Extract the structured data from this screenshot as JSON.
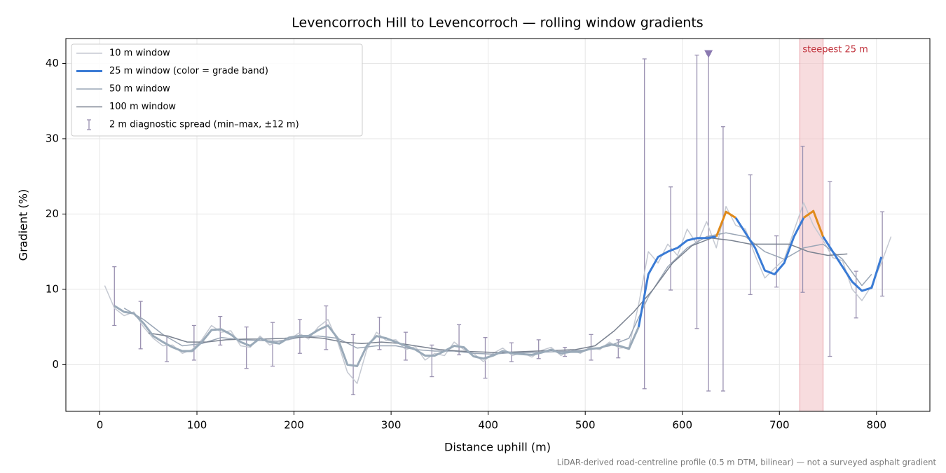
{
  "chart_data": {
    "type": "line",
    "title": "Levencorroch Hill to Levencorroch — rolling window gradients",
    "xlabel": "Distance uphill (m)",
    "ylabel": "Gradient (%)",
    "footnote": "LiDAR-derived road-centreline profile (0.5 m DTM, bilinear) — not a surveyed asphalt gradient",
    "xlim": [
      -35,
      855
    ],
    "ylim": [
      -6.2,
      43.3
    ],
    "xticks": [
      0,
      100,
      200,
      300,
      400,
      500,
      600,
      700,
      800
    ],
    "yticks": [
      0,
      10,
      20,
      30,
      40
    ],
    "grid": true,
    "legend": "upper left",
    "series": [
      {
        "name": "10 m window",
        "color": "#c5c9d2",
        "x": [
          5,
          15,
          25,
          35,
          45,
          55,
          65,
          75,
          85,
          95,
          105,
          115,
          125,
          135,
          145,
          155,
          165,
          175,
          185,
          195,
          205,
          215,
          225,
          235,
          245,
          255,
          265,
          275,
          285,
          295,
          305,
          315,
          325,
          335,
          345,
          355,
          365,
          375,
          385,
          395,
          405,
          415,
          425,
          435,
          445,
          455,
          465,
          475,
          485,
          495,
          505,
          515,
          525,
          535,
          545,
          555,
          565,
          575,
          585,
          595,
          605,
          615,
          625,
          635,
          645,
          655,
          665,
          675,
          685,
          695,
          705,
          715,
          725,
          735,
          745,
          755,
          765,
          775,
          785,
          795,
          805,
          815
        ],
        "values": [
          10.5,
          7.5,
          6.5,
          7.0,
          5.0,
          3.5,
          2.5,
          2.6,
          1.5,
          2.0,
          3.3,
          5.2,
          4.3,
          4.5,
          2.5,
          2.3,
          3.8,
          2.6,
          3.2,
          3.3,
          4.2,
          3.4,
          5.0,
          6.0,
          3.0,
          -1.0,
          -2.5,
          2.0,
          4.3,
          3.2,
          3.3,
          2.0,
          2.4,
          0.6,
          1.5,
          1.2,
          3.0,
          2.0,
          1.5,
          0.4,
          1.5,
          2.2,
          1.2,
          1.6,
          1.0,
          1.9,
          2.3,
          1.2,
          2.0,
          1.5,
          2.3,
          2.0,
          3.0,
          2.2,
          2.3,
          8,
          15,
          13.5,
          16,
          14.5,
          18,
          16,
          19,
          15.5,
          21,
          18.5,
          18,
          14.5,
          11.5,
          12.8,
          14,
          17.8,
          21.5,
          18.5,
          16.5,
          14.2,
          13.8,
          10,
          8.5,
          10.5,
          13.5,
          17
        ]
      },
      {
        "name": "25 m window (color = grade band)",
        "color": "#3a7bd5",
        "x": [
          15,
          25,
          35,
          45,
          55,
          65,
          75,
          85,
          95,
          105,
          115,
          125,
          135,
          145,
          155,
          165,
          175,
          185,
          195,
          205,
          215,
          225,
          235,
          245,
          255,
          265,
          275,
          285,
          295,
          305,
          315,
          325,
          335,
          345,
          355,
          365,
          375,
          385,
          395,
          405,
          415,
          425,
          435,
          445,
          455,
          465,
          475,
          485,
          495,
          505,
          515,
          525,
          535,
          545,
          555,
          565,
          575,
          585,
          595,
          605,
          615,
          625,
          635,
          645,
          655,
          665,
          675,
          685,
          695,
          705,
          715,
          725,
          735,
          745,
          755,
          765,
          775,
          785,
          795,
          805
        ],
        "values": [
          7.8,
          7,
          6.8,
          5.5,
          3.8,
          3,
          2.3,
          1.8,
          1.8,
          3,
          4.6,
          4.7,
          4,
          3,
          2.5,
          3.5,
          3,
          2.8,
          3.6,
          3.8,
          3.8,
          4.6,
          5.2,
          3.5,
          0,
          -0.2,
          2.5,
          3.8,
          3.5,
          3,
          2.5,
          2,
          1.2,
          1.2,
          1.8,
          2.5,
          2.3,
          1.1,
          0.8,
          1.2,
          1.8,
          1.5,
          1.4,
          1.3,
          1.6,
          2,
          1.5,
          1.7,
          1.7,
          2.1,
          2.2,
          2.7,
          2.5,
          2.1,
          5,
          12,
          14.3,
          15,
          15.5,
          16.5,
          16.8,
          16.8,
          17,
          20.3,
          19.5,
          17.5,
          15.5,
          12.5,
          12,
          13.5,
          17,
          19.5,
          20.4,
          17,
          15,
          13,
          11,
          9.8,
          10.2,
          14.3
        ]
      },
      {
        "name": "50 m window",
        "color": "#9aa6b6",
        "x": [
          25,
          45,
          65,
          85,
          105,
          125,
          145,
          165,
          185,
          205,
          225,
          245,
          265,
          285,
          305,
          325,
          345,
          365,
          385,
          405,
          425,
          445,
          465,
          485,
          505,
          525,
          545,
          565,
          585,
          605,
          625,
          645,
          665,
          685,
          705,
          725,
          745,
          765,
          785,
          795
        ],
        "values": [
          7.5,
          6,
          4,
          2.5,
          2.8,
          3.6,
          3.3,
          3.2,
          3.1,
          3.6,
          3.8,
          3.5,
          2.2,
          2.5,
          2.5,
          2,
          1.8,
          1.8,
          1.5,
          1.4,
          1.6,
          1.6,
          1.7,
          1.8,
          2,
          2.5,
          3.5,
          9,
          13,
          15.5,
          17,
          17.5,
          17,
          15,
          14,
          15.5,
          16,
          14,
          10.5,
          12
        ]
      },
      {
        "name": "100 m window",
        "color": "#7a8290",
        "x": [
          50,
          70,
          90,
          110,
          130,
          150,
          170,
          190,
          210,
          230,
          250,
          270,
          290,
          310,
          330,
          350,
          370,
          390,
          410,
          430,
          450,
          470,
          490,
          510,
          530,
          550,
          570,
          590,
          610,
          630,
          650,
          670,
          690,
          710,
          730,
          750,
          770
        ],
        "values": [
          4.2,
          3.8,
          3,
          3,
          3.3,
          3.4,
          3.4,
          3.5,
          3.7,
          3.5,
          3,
          2.8,
          3,
          2.8,
          2.4,
          2,
          1.8,
          1.7,
          1.6,
          1.7,
          1.8,
          1.9,
          2,
          2.5,
          4.5,
          7,
          10,
          13.5,
          15.8,
          16.8,
          16.5,
          16,
          16,
          16,
          15,
          14.5,
          14.7
        ]
      }
    ],
    "grade_bands": [
      {
        "max": 8,
        "color": "#9aaab9"
      },
      {
        "max": 20,
        "color": "#3a7bd5"
      },
      {
        "color": "#e08a1a"
      }
    ],
    "spread": {
      "name": "2 m diagnostic spread (min–max, ±12 m)",
      "color": "#9990b0",
      "x": [
        15,
        42,
        69,
        97,
        124,
        151,
        178,
        206,
        233,
        261,
        288,
        315,
        342,
        370,
        397,
        424,
        452,
        479,
        506,
        534,
        561,
        588,
        615,
        627,
        642,
        670,
        697,
        724,
        752,
        779,
        806
      ],
      "min": [
        5.2,
        2.1,
        0.4,
        0.6,
        2.6,
        -0.5,
        -0.2,
        1.5,
        2,
        -4,
        2,
        0.6,
        -1.6,
        1.3,
        -1.8,
        0.4,
        0.8,
        1.1,
        0.6,
        0.9,
        -3.2,
        9.9,
        4.8,
        -3.5,
        -3.5,
        9.3,
        10.3,
        9.6,
        1.1,
        6.2,
        9.1
      ],
      "max": [
        13,
        8.4,
        3.8,
        5.2,
        6.4,
        5,
        5.6,
        6,
        7.8,
        4,
        6.3,
        4.3,
        2.6,
        5.3,
        3.6,
        2.9,
        3.3,
        2.3,
        4,
        3.3,
        40.6,
        23.6,
        41.1,
        41.2,
        31.6,
        25.2,
        17.1,
        29,
        24.3,
        12.4,
        20.3
      ]
    },
    "peak_marker": {
      "x": 627,
      "y": 41.2,
      "color": "#8a78b0"
    },
    "highlight": {
      "x": [
        721,
        745
      ],
      "label": "steepest 25 m",
      "color": "#f2c4c8",
      "label_color": "#c0303a"
    }
  }
}
